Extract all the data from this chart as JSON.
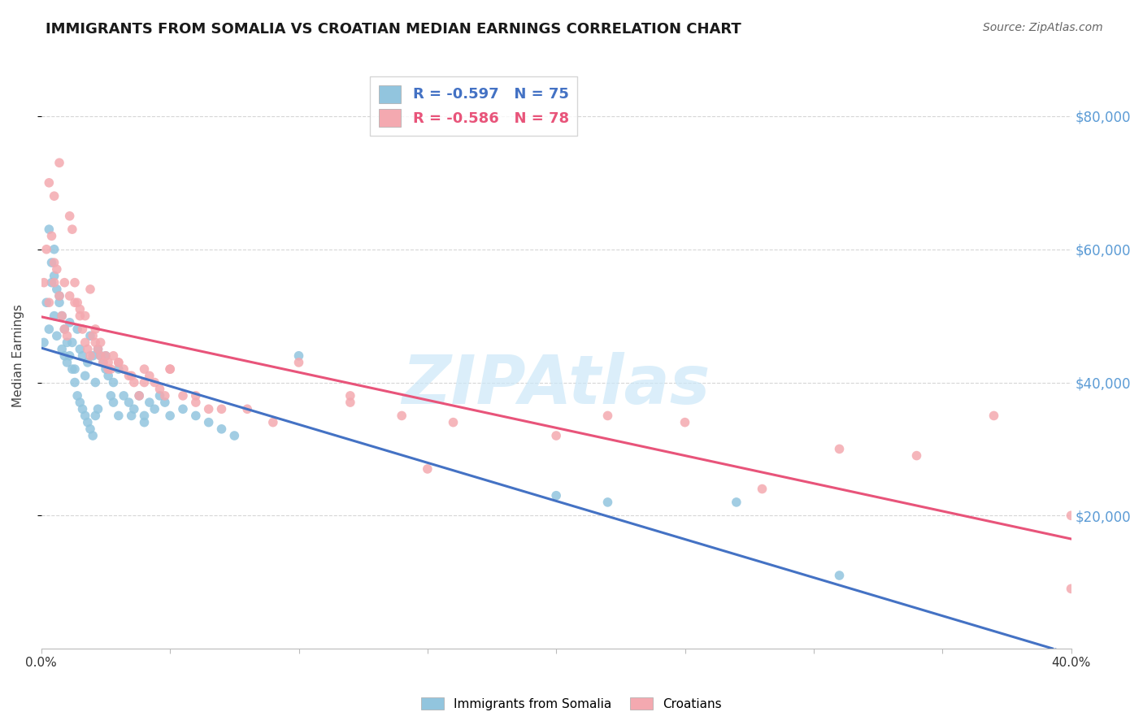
{
  "title": "IMMIGRANTS FROM SOMALIA VS CROATIAN MEDIAN EARNINGS CORRELATION CHART",
  "source": "Source: ZipAtlas.com",
  "ylabel": "Median Earnings",
  "ytick_labels": [
    "$20,000",
    "$40,000",
    "$60,000",
    "$80,000"
  ],
  "ytick_values": [
    20000,
    40000,
    60000,
    80000
  ],
  "ymin": 0,
  "ymax": 88000,
  "xmin": 0.0,
  "xmax": 0.4,
  "watermark": "ZIPAtlas",
  "watermark_color": "#cce8f8",
  "soma_label": "Immigrants from Somalia",
  "croat_label": "Croatians",
  "soma_color": "#92c5de",
  "croat_color": "#f4a9b0",
  "trend_soma_color": "#4472c4",
  "trend_croat_color": "#e8547a",
  "background_color": "#ffffff",
  "grid_color": "#cccccc",
  "title_color": "#1a1a1a",
  "right_axis_color": "#5b9bd5",
  "soma_R": "-0.597",
  "soma_N": "75",
  "croat_R": "-0.586",
  "croat_N": "78",
  "soma_scatter_x": [
    0.001,
    0.002,
    0.003,
    0.004,
    0.005,
    0.006,
    0.007,
    0.008,
    0.009,
    0.01,
    0.011,
    0.012,
    0.013,
    0.014,
    0.015,
    0.016,
    0.017,
    0.018,
    0.019,
    0.02,
    0.021,
    0.022,
    0.023,
    0.024,
    0.025,
    0.026,
    0.027,
    0.028,
    0.03,
    0.032,
    0.034,
    0.036,
    0.038,
    0.04,
    0.042,
    0.044,
    0.046,
    0.048,
    0.05,
    0.055,
    0.06,
    0.065,
    0.07,
    0.075,
    0.003,
    0.004,
    0.005,
    0.006,
    0.007,
    0.008,
    0.009,
    0.01,
    0.011,
    0.012,
    0.013,
    0.014,
    0.015,
    0.016,
    0.017,
    0.018,
    0.019,
    0.02,
    0.021,
    0.022,
    0.025,
    0.028,
    0.03,
    0.035,
    0.04,
    0.1,
    0.2,
    0.22,
    0.27,
    0.31,
    0.005
  ],
  "soma_scatter_y": [
    46000,
    52000,
    48000,
    55000,
    50000,
    47000,
    53000,
    45000,
    44000,
    43000,
    49000,
    46000,
    42000,
    48000,
    45000,
    44000,
    41000,
    43000,
    47000,
    44000,
    40000,
    45000,
    44000,
    43000,
    42000,
    41000,
    38000,
    40000,
    42000,
    38000,
    37000,
    36000,
    38000,
    35000,
    37000,
    36000,
    38000,
    37000,
    35000,
    36000,
    35000,
    34000,
    33000,
    32000,
    63000,
    58000,
    56000,
    54000,
    52000,
    50000,
    48000,
    46000,
    44000,
    42000,
    40000,
    38000,
    37000,
    36000,
    35000,
    34000,
    33000,
    32000,
    35000,
    36000,
    44000,
    37000,
    35000,
    35000,
    34000,
    44000,
    23000,
    22000,
    22000,
    11000,
    60000
  ],
  "croat_scatter_x": [
    0.001,
    0.002,
    0.003,
    0.004,
    0.005,
    0.006,
    0.007,
    0.008,
    0.009,
    0.01,
    0.011,
    0.012,
    0.013,
    0.014,
    0.015,
    0.016,
    0.017,
    0.018,
    0.019,
    0.02,
    0.021,
    0.022,
    0.023,
    0.024,
    0.025,
    0.026,
    0.027,
    0.028,
    0.03,
    0.032,
    0.034,
    0.036,
    0.038,
    0.04,
    0.042,
    0.044,
    0.046,
    0.048,
    0.05,
    0.055,
    0.06,
    0.065,
    0.08,
    0.1,
    0.12,
    0.14,
    0.16,
    0.2,
    0.22,
    0.25,
    0.28,
    0.31,
    0.34,
    0.37,
    0.4,
    0.003,
    0.005,
    0.007,
    0.009,
    0.011,
    0.013,
    0.015,
    0.017,
    0.019,
    0.021,
    0.023,
    0.026,
    0.03,
    0.035,
    0.04,
    0.05,
    0.06,
    0.07,
    0.09,
    0.12,
    0.15,
    0.4,
    0.005
  ],
  "croat_scatter_y": [
    55000,
    60000,
    52000,
    62000,
    58000,
    57000,
    53000,
    50000,
    48000,
    47000,
    65000,
    63000,
    55000,
    52000,
    50000,
    48000,
    46000,
    45000,
    44000,
    47000,
    46000,
    45000,
    44000,
    43000,
    44000,
    43000,
    42000,
    44000,
    43000,
    42000,
    41000,
    40000,
    38000,
    42000,
    41000,
    40000,
    39000,
    38000,
    42000,
    38000,
    37000,
    36000,
    36000,
    43000,
    37000,
    35000,
    34000,
    32000,
    35000,
    34000,
    24000,
    30000,
    29000,
    35000,
    9000,
    70000,
    68000,
    73000,
    55000,
    53000,
    52000,
    51000,
    50000,
    54000,
    48000,
    46000,
    42000,
    43000,
    41000,
    40000,
    42000,
    38000,
    36000,
    34000,
    38000,
    27000,
    20000,
    55000
  ]
}
